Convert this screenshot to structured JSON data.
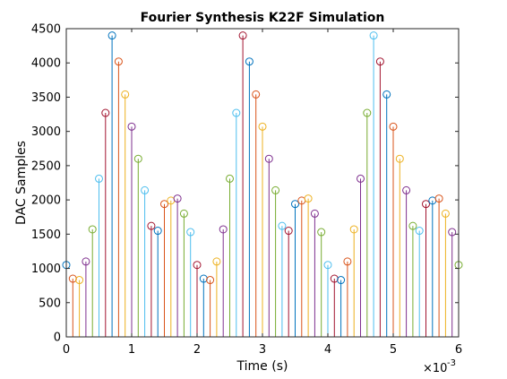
{
  "chart_data": {
    "type": "stem",
    "title": "Fourier Synthesis K22F Simulation",
    "xlabel": "Time (s)",
    "ylabel": "DAC Samples",
    "x_exponent_label": "×10",
    "x_exponent_power": "-3",
    "xlim": [
      0,
      6
    ],
    "ylim": [
      0,
      4500
    ],
    "xticks": [
      0,
      1,
      2,
      3,
      4,
      5,
      6
    ],
    "yticks": [
      0,
      500,
      1000,
      1500,
      2000,
      2500,
      3000,
      3500,
      4000,
      4500
    ],
    "x_unit_scale": 0.001,
    "grid": false,
    "box": true,
    "colors": [
      "#0072BD",
      "#D95319",
      "#EDB120",
      "#7E2F8E",
      "#77AC30",
      "#4DBEEE",
      "#A2142F"
    ],
    "x": [
      0.0,
      0.1,
      0.2,
      0.3,
      0.4,
      0.5,
      0.6,
      0.7,
      0.8,
      0.9,
      1.0,
      1.1,
      1.2,
      1.3,
      1.4,
      1.5,
      1.6,
      1.7,
      1.8,
      1.9,
      2.0,
      2.1,
      2.2,
      2.3,
      2.4,
      2.5,
      2.6,
      2.7,
      2.8,
      2.9,
      3.0,
      3.1,
      3.2,
      3.3,
      3.4,
      3.5,
      3.6,
      3.7,
      3.8,
      3.9,
      4.0,
      4.1,
      4.2,
      4.3,
      4.4,
      4.5,
      4.6,
      4.7,
      4.8,
      4.9,
      5.0,
      5.1,
      5.2,
      5.3,
      5.4,
      5.5,
      5.6,
      5.7,
      5.8,
      5.9,
      6.0
    ],
    "values": [
      1050,
      850,
      830,
      1100,
      1570,
      2310,
      3270,
      4400,
      4020,
      3540,
      3070,
      2600,
      2140,
      1620,
      1550,
      1940,
      1990,
      2020,
      1800,
      1530,
      1050,
      850,
      830,
      1100,
      1570,
      2310,
      3270,
      4400,
      4020,
      3540,
      3070,
      2600,
      2140,
      1620,
      1550,
      1940,
      1990,
      2020,
      1800,
      1530,
      1050,
      850,
      830,
      1100,
      1570,
      2310,
      3270,
      4400,
      4020,
      3540,
      3070,
      2600,
      2140,
      1620,
      1550,
      1940,
      1990,
      2020,
      1800,
      1530,
      1050
    ]
  }
}
